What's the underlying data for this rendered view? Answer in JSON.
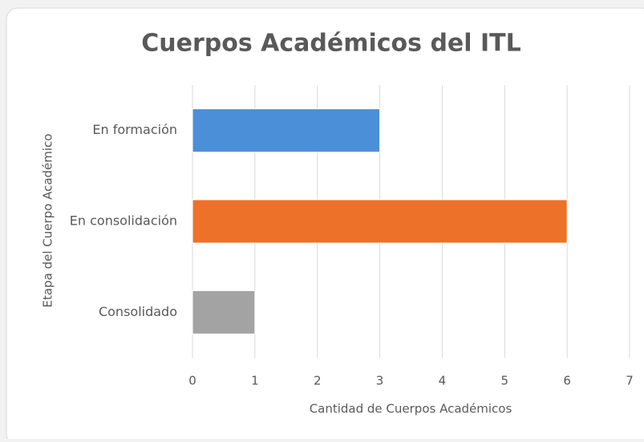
{
  "chart_data": {
    "type": "bar",
    "orientation": "horizontal",
    "title": "Cuerpos Académicos del ITL",
    "categories": [
      "En formación",
      "En consolidación",
      "Consolidado"
    ],
    "values": [
      3,
      6,
      1
    ],
    "colors": [
      "#4a8fd8",
      "#ed7128",
      "#a3a3a3"
    ],
    "xlabel": "Cantidad de Cuerpos Académicos",
    "ylabel": "Etapa del Cuerpo Académico",
    "xlim": [
      0,
      7
    ],
    "xticks": [
      0,
      1,
      2,
      3,
      4,
      5,
      6,
      7
    ],
    "grid": true
  }
}
